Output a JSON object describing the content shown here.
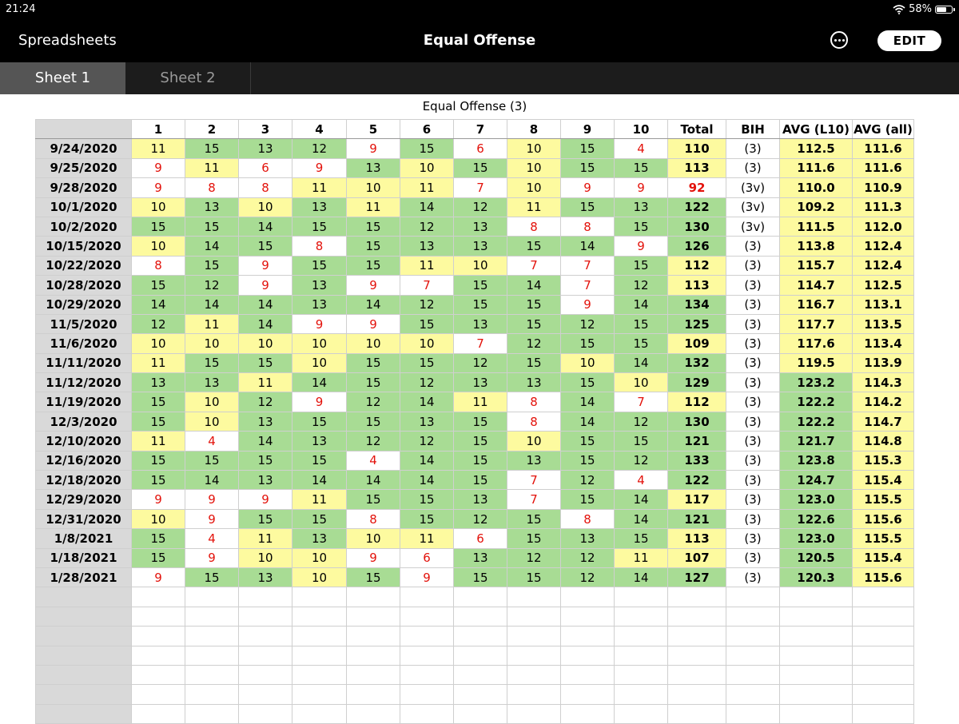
{
  "status": {
    "time": "21:24",
    "battery": "58%",
    "battery_level": 0.58
  },
  "nav": {
    "back_label": "Spreadsheets",
    "title": "Equal Offense",
    "edit_label": "EDIT"
  },
  "tabs": [
    {
      "label": "Sheet 1",
      "active": true
    },
    {
      "label": "Sheet 2",
      "active": false
    }
  ],
  "sheet": {
    "title": "Equal Offense (3)",
    "headers": [
      "",
      "1",
      "2",
      "3",
      "4",
      "5",
      "6",
      "7",
      "8",
      "9",
      "10",
      "Total",
      "BIH",
      "AVG (L10)",
      "AVG (all)"
    ],
    "colors": {
      "green": "#a8dc94",
      "yellow": "#fdfa9f",
      "white": "#ffffff",
      "red_text": "#e3120b",
      "row_header": "#d9d9d9"
    },
    "rows": [
      {
        "date": "9/24/2020",
        "scores": [
          "11",
          "15",
          "13",
          "12",
          "9",
          "15",
          "6",
          "10",
          "15",
          "4"
        ],
        "fills": [
          "y",
          "g",
          "g",
          "g",
          "w",
          "g",
          "w",
          "y",
          "g",
          "w"
        ],
        "total": "110",
        "total_fill": "y",
        "bih": "(3)",
        "l10": "112.5",
        "l10_fill": "y",
        "all": "111.6",
        "all_fill": "y"
      },
      {
        "date": "9/25/2020",
        "scores": [
          "9",
          "11",
          "6",
          "9",
          "13",
          "10",
          "15",
          "10",
          "15",
          "15"
        ],
        "fills": [
          "w",
          "y",
          "w",
          "w",
          "g",
          "y",
          "g",
          "y",
          "g",
          "g"
        ],
        "total": "113",
        "total_fill": "y",
        "bih": "(3)",
        "l10": "111.6",
        "l10_fill": "y",
        "all": "111.6",
        "all_fill": "y"
      },
      {
        "date": "9/28/2020",
        "scores": [
          "9",
          "8",
          "8",
          "11",
          "10",
          "11",
          "7",
          "10",
          "9",
          "9"
        ],
        "fills": [
          "w",
          "w",
          "w",
          "y",
          "y",
          "y",
          "w",
          "y",
          "w",
          "w"
        ],
        "total": "92",
        "total_fill": "w",
        "bih": "(3v)",
        "l10": "110.0",
        "l10_fill": "y",
        "all": "110.9",
        "all_fill": "y"
      },
      {
        "date": "10/1/2020",
        "scores": [
          "10",
          "13",
          "10",
          "13",
          "11",
          "14",
          "12",
          "11",
          "15",
          "13"
        ],
        "fills": [
          "y",
          "g",
          "y",
          "g",
          "y",
          "g",
          "g",
          "y",
          "g",
          "g"
        ],
        "total": "122",
        "total_fill": "g",
        "bih": "(3v)",
        "l10": "109.2",
        "l10_fill": "y",
        "all": "111.3",
        "all_fill": "y"
      },
      {
        "date": "10/2/2020",
        "scores": [
          "15",
          "15",
          "14",
          "15",
          "15",
          "12",
          "13",
          "8",
          "8",
          "15"
        ],
        "fills": [
          "g",
          "g",
          "g",
          "g",
          "g",
          "g",
          "g",
          "w",
          "w",
          "g"
        ],
        "total": "130",
        "total_fill": "g",
        "bih": "(3v)",
        "l10": "111.5",
        "l10_fill": "y",
        "all": "112.0",
        "all_fill": "y"
      },
      {
        "date": "10/15/2020",
        "scores": [
          "10",
          "14",
          "15",
          "8",
          "15",
          "13",
          "13",
          "15",
          "14",
          "9"
        ],
        "fills": [
          "y",
          "g",
          "g",
          "w",
          "g",
          "g",
          "g",
          "g",
          "g",
          "w"
        ],
        "total": "126",
        "total_fill": "g",
        "bih": "(3)",
        "l10": "113.8",
        "l10_fill": "y",
        "all": "112.4",
        "all_fill": "y"
      },
      {
        "date": "10/22/2020",
        "scores": [
          "8",
          "15",
          "9",
          "15",
          "15",
          "11",
          "10",
          "7",
          "7",
          "15"
        ],
        "fills": [
          "w",
          "g",
          "w",
          "g",
          "g",
          "y",
          "y",
          "w",
          "w",
          "g"
        ],
        "total": "112",
        "total_fill": "y",
        "bih": "(3)",
        "l10": "115.7",
        "l10_fill": "y",
        "all": "112.4",
        "all_fill": "y"
      },
      {
        "date": "10/28/2020",
        "scores": [
          "15",
          "12",
          "9",
          "13",
          "9",
          "7",
          "15",
          "14",
          "7",
          "12"
        ],
        "fills": [
          "g",
          "g",
          "w",
          "g",
          "w",
          "w",
          "g",
          "g",
          "w",
          "g"
        ],
        "total": "113",
        "total_fill": "y",
        "bih": "(3)",
        "l10": "114.7",
        "l10_fill": "y",
        "all": "112.5",
        "all_fill": "y"
      },
      {
        "date": "10/29/2020",
        "scores": [
          "14",
          "14",
          "14",
          "13",
          "14",
          "12",
          "15",
          "15",
          "9",
          "14"
        ],
        "fills": [
          "g",
          "g",
          "g",
          "g",
          "g",
          "g",
          "g",
          "g",
          "w",
          "g"
        ],
        "total": "134",
        "total_fill": "g",
        "bih": "(3)",
        "l10": "116.7",
        "l10_fill": "y",
        "all": "113.1",
        "all_fill": "y"
      },
      {
        "date": "11/5/2020",
        "scores": [
          "12",
          "11",
          "14",
          "9",
          "9",
          "15",
          "13",
          "15",
          "12",
          "15"
        ],
        "fills": [
          "g",
          "y",
          "g",
          "w",
          "w",
          "g",
          "g",
          "g",
          "g",
          "g"
        ],
        "total": "125",
        "total_fill": "g",
        "bih": "(3)",
        "l10": "117.7",
        "l10_fill": "y",
        "all": "113.5",
        "all_fill": "y"
      },
      {
        "date": "11/6/2020",
        "scores": [
          "10",
          "10",
          "10",
          "10",
          "10",
          "10",
          "7",
          "12",
          "15",
          "15"
        ],
        "fills": [
          "y",
          "y",
          "y",
          "y",
          "y",
          "y",
          "w",
          "g",
          "g",
          "g"
        ],
        "total": "109",
        "total_fill": "y",
        "bih": "(3)",
        "l10": "117.6",
        "l10_fill": "y",
        "all": "113.4",
        "all_fill": "y"
      },
      {
        "date": "11/11/2020",
        "scores": [
          "11",
          "15",
          "15",
          "10",
          "15",
          "15",
          "12",
          "15",
          "10",
          "14"
        ],
        "fills": [
          "y",
          "g",
          "g",
          "y",
          "g",
          "g",
          "g",
          "g",
          "y",
          "g"
        ],
        "total": "132",
        "total_fill": "g",
        "bih": "(3)",
        "l10": "119.5",
        "l10_fill": "y",
        "all": "113.9",
        "all_fill": "y"
      },
      {
        "date": "11/12/2020",
        "scores": [
          "13",
          "13",
          "11",
          "14",
          "15",
          "12",
          "13",
          "13",
          "15",
          "10"
        ],
        "fills": [
          "g",
          "g",
          "y",
          "g",
          "g",
          "g",
          "g",
          "g",
          "g",
          "y"
        ],
        "total": "129",
        "total_fill": "g",
        "bih": "(3)",
        "l10": "123.2",
        "l10_fill": "g",
        "all": "114.3",
        "all_fill": "y"
      },
      {
        "date": "11/19/2020",
        "scores": [
          "15",
          "10",
          "12",
          "9",
          "12",
          "14",
          "11",
          "8",
          "14",
          "7"
        ],
        "fills": [
          "g",
          "y",
          "g",
          "w",
          "g",
          "g",
          "y",
          "w",
          "g",
          "w"
        ],
        "total": "112",
        "total_fill": "y",
        "bih": "(3)",
        "l10": "122.2",
        "l10_fill": "g",
        "all": "114.2",
        "all_fill": "y"
      },
      {
        "date": "12/3/2020",
        "scores": [
          "15",
          "10",
          "13",
          "15",
          "15",
          "13",
          "15",
          "8",
          "14",
          "12"
        ],
        "fills": [
          "g",
          "y",
          "g",
          "g",
          "g",
          "g",
          "g",
          "w",
          "g",
          "g"
        ],
        "total": "130",
        "total_fill": "g",
        "bih": "(3)",
        "l10": "122.2",
        "l10_fill": "g",
        "all": "114.7",
        "all_fill": "y"
      },
      {
        "date": "12/10/2020",
        "scores": [
          "11",
          "4",
          "14",
          "13",
          "12",
          "12",
          "15",
          "10",
          "15",
          "15"
        ],
        "fills": [
          "y",
          "w",
          "g",
          "g",
          "g",
          "g",
          "g",
          "y",
          "g",
          "g"
        ],
        "total": "121",
        "total_fill": "g",
        "bih": "(3)",
        "l10": "121.7",
        "l10_fill": "g",
        "all": "114.8",
        "all_fill": "y"
      },
      {
        "date": "12/16/2020",
        "scores": [
          "15",
          "15",
          "15",
          "15",
          "4",
          "14",
          "15",
          "13",
          "15",
          "12"
        ],
        "fills": [
          "g",
          "g",
          "g",
          "g",
          "w",
          "g",
          "g",
          "g",
          "g",
          "g"
        ],
        "total": "133",
        "total_fill": "g",
        "bih": "(3)",
        "l10": "123.8",
        "l10_fill": "g",
        "all": "115.3",
        "all_fill": "y"
      },
      {
        "date": "12/18/2020",
        "scores": [
          "15",
          "14",
          "13",
          "14",
          "14",
          "14",
          "15",
          "7",
          "12",
          "4"
        ],
        "fills": [
          "g",
          "g",
          "g",
          "g",
          "g",
          "g",
          "g",
          "w",
          "g",
          "w"
        ],
        "total": "122",
        "total_fill": "g",
        "bih": "(3)",
        "l10": "124.7",
        "l10_fill": "g",
        "all": "115.4",
        "all_fill": "y"
      },
      {
        "date": "12/29/2020",
        "scores": [
          "9",
          "9",
          "9",
          "11",
          "15",
          "15",
          "13",
          "7",
          "15",
          "14"
        ],
        "fills": [
          "w",
          "w",
          "w",
          "y",
          "g",
          "g",
          "g",
          "w",
          "g",
          "g"
        ],
        "total": "117",
        "total_fill": "y",
        "bih": "(3)",
        "l10": "123.0",
        "l10_fill": "g",
        "all": "115.5",
        "all_fill": "y"
      },
      {
        "date": "12/31/2020",
        "scores": [
          "10",
          "9",
          "15",
          "15",
          "8",
          "15",
          "12",
          "15",
          "8",
          "14"
        ],
        "fills": [
          "y",
          "w",
          "g",
          "g",
          "w",
          "g",
          "g",
          "g",
          "w",
          "g"
        ],
        "total": "121",
        "total_fill": "g",
        "bih": "(3)",
        "l10": "122.6",
        "l10_fill": "g",
        "all": "115.6",
        "all_fill": "y"
      },
      {
        "date": "1/8/2021",
        "scores": [
          "15",
          "4",
          "11",
          "13",
          "10",
          "11",
          "6",
          "15",
          "13",
          "15"
        ],
        "fills": [
          "g",
          "w",
          "y",
          "g",
          "y",
          "y",
          "w",
          "g",
          "g",
          "g"
        ],
        "total": "113",
        "total_fill": "y",
        "bih": "(3)",
        "l10": "123.0",
        "l10_fill": "g",
        "all": "115.5",
        "all_fill": "y"
      },
      {
        "date": "1/18/2021",
        "scores": [
          "15",
          "9",
          "10",
          "10",
          "9",
          "6",
          "13",
          "12",
          "12",
          "11"
        ],
        "fills": [
          "g",
          "w",
          "y",
          "y",
          "w",
          "w",
          "g",
          "g",
          "g",
          "y"
        ],
        "total": "107",
        "total_fill": "y",
        "bih": "(3)",
        "l10": "120.5",
        "l10_fill": "g",
        "all": "115.4",
        "all_fill": "y"
      },
      {
        "date": "1/28/2021",
        "scores": [
          "9",
          "15",
          "13",
          "10",
          "15",
          "9",
          "15",
          "15",
          "12",
          "14"
        ],
        "fills": [
          "w",
          "g",
          "g",
          "y",
          "g",
          "w",
          "g",
          "g",
          "g",
          "g"
        ],
        "total": "127",
        "total_fill": "g",
        "bih": "(3)",
        "l10": "120.3",
        "l10_fill": "g",
        "all": "115.6",
        "all_fill": "y"
      }
    ],
    "empty_rows": 7
  }
}
